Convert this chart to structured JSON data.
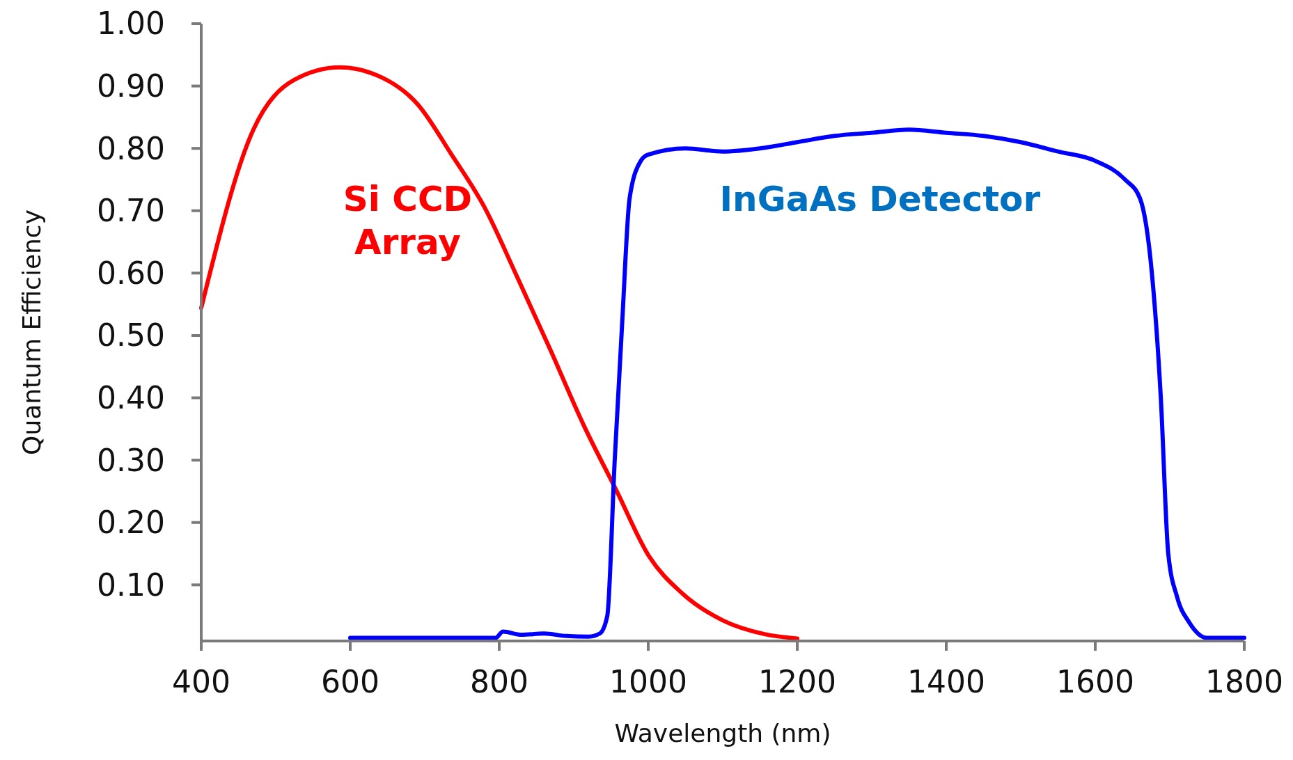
{
  "chart_data": {
    "type": "line",
    "xlabel": "Wavelength (nm)",
    "ylabel": "Quantum Efficiency",
    "xlim": [
      400,
      1800
    ],
    "xticks": [
      400,
      600,
      800,
      1000,
      1200,
      1400,
      1600,
      1800
    ],
    "ylim": [
      0.01,
      1.0
    ],
    "yticks": [
      {
        "value": 0.1,
        "label": "0.10"
      },
      {
        "value": 0.2,
        "label": "0.20"
      },
      {
        "value": 0.3,
        "label": "0.30"
      },
      {
        "value": 0.4,
        "label": "0.40"
      },
      {
        "value": 0.5,
        "label": "0.50"
      },
      {
        "value": 0.6,
        "label": "0.60"
      },
      {
        "value": 0.7,
        "label": "0.70"
      },
      {
        "value": 0.8,
        "label": "0.80"
      },
      {
        "value": 0.9,
        "label": "0.90"
      },
      {
        "value": 1.0,
        "label": "1.00"
      }
    ],
    "grid": false,
    "legend": false,
    "marker": "none",
    "line_style": "solid",
    "series": [
      {
        "name": "Si CCD Array",
        "color": "#ff0000",
        "x": [
          400,
          470,
          525,
          586,
          636,
          691,
          736,
          780,
          824,
          869,
          913,
          957,
          1001,
          1045,
          1100,
          1156,
          1200
        ],
        "values": [
          0.544,
          0.83,
          0.91,
          0.93,
          0.917,
          0.87,
          0.79,
          0.706,
          0.594,
          0.476,
          0.357,
          0.252,
          0.146,
          0.087,
          0.043,
          0.021,
          0.014
        ]
      },
      {
        "name": "InGaAs Detector",
        "color": "#0000ff",
        "x": [
          600,
          795,
          805,
          830,
          860,
          890,
          920,
          935,
          945,
          955,
          965,
          975,
          990,
          1000,
          1050,
          1100,
          1150,
          1200,
          1250,
          1300,
          1350,
          1400,
          1450,
          1500,
          1550,
          1600,
          1640,
          1660,
          1676,
          1688,
          1698,
          1710,
          1726,
          1750,
          1800
        ],
        "values": [
          0.015,
          0.015,
          0.025,
          0.02,
          0.022,
          0.018,
          0.017,
          0.022,
          0.05,
          0.3,
          0.52,
          0.72,
          0.78,
          0.79,
          0.8,
          0.795,
          0.8,
          0.81,
          0.82,
          0.825,
          0.83,
          0.825,
          0.82,
          0.81,
          0.795,
          0.78,
          0.75,
          0.72,
          0.6,
          0.4,
          0.15,
          0.08,
          0.04,
          0.015,
          0.015
        ]
      }
    ]
  }
}
